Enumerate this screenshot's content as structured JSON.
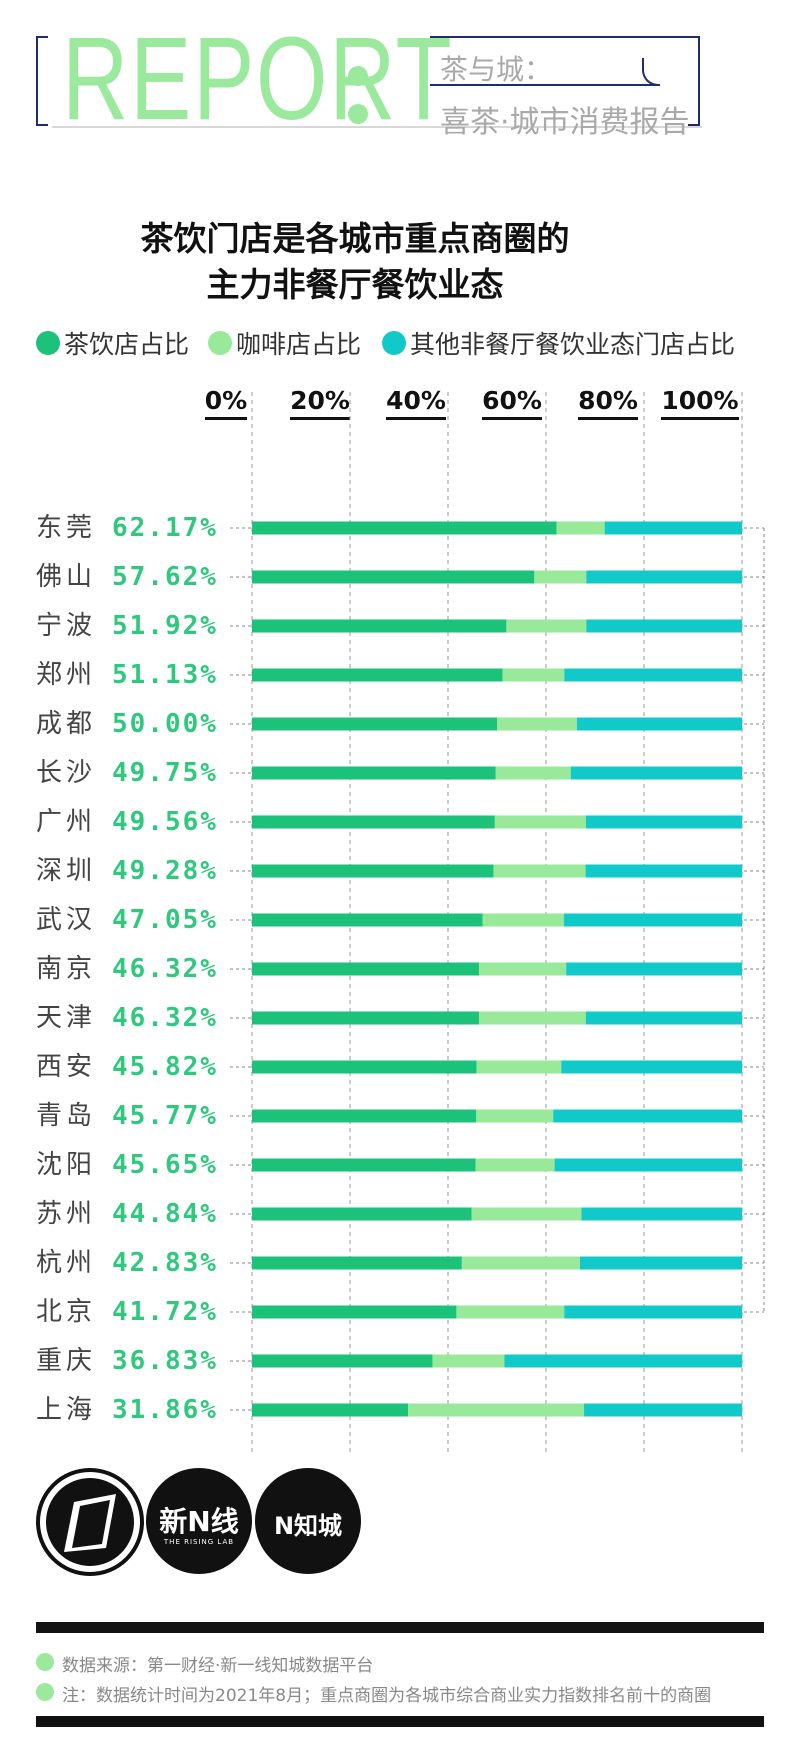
{
  "header": {
    "report_word": "REPORT",
    "subtitle_line1": "茶与城：",
    "subtitle_line2": "喜茶·城市消费报告"
  },
  "chart_data": {
    "type": "bar",
    "stacked": true,
    "orientation": "horizontal",
    "title_line1": "茶饮门店是各城市重点商圈的",
    "title_line2": "主力非餐厅餐饮业态",
    "xlim": [
      0,
      100
    ],
    "ticks": [
      "0%",
      "20%",
      "40%",
      "60%",
      "80%",
      "100%"
    ],
    "legend_position": "top",
    "categories": [
      "东莞",
      "佛山",
      "宁波",
      "郑州",
      "成都",
      "长沙",
      "广州",
      "深圳",
      "武汉",
      "南京",
      "天津",
      "西安",
      "青岛",
      "沈阳",
      "苏州",
      "杭州",
      "北京",
      "重庆",
      "上海"
    ],
    "value_labels": [
      "62.17%",
      "57.62%",
      "51.92%",
      "51.13%",
      "50.00%",
      "49.75%",
      "49.56%",
      "49.28%",
      "47.05%",
      "46.32%",
      "46.32%",
      "45.82%",
      "45.77%",
      "45.65%",
      "44.84%",
      "42.83%",
      "41.72%",
      "36.83%",
      "31.86%"
    ],
    "series": [
      {
        "name": "茶饮店占比",
        "color": "#1DC27A",
        "values": [
          62.17,
          57.62,
          51.92,
          51.13,
          50.0,
          49.75,
          49.56,
          49.28,
          47.05,
          46.32,
          46.32,
          45.82,
          45.77,
          45.65,
          44.84,
          42.83,
          41.72,
          36.83,
          31.86
        ]
      },
      {
        "name": "咖啡店占比",
        "color": "#98E99A",
        "values": [
          9.8,
          10.6,
          16.3,
          12.6,
          16.3,
          15.3,
          18.6,
          18.8,
          16.6,
          17.8,
          21.8,
          17.3,
          15.7,
          16.1,
          22.4,
          24.1,
          22.0,
          14.7,
          35.9
        ]
      },
      {
        "name": "其他非餐厅餐饮业态门店占比",
        "color": "#11C9C9",
        "values": [
          28.03,
          31.78,
          31.78,
          36.27,
          33.7,
          34.95,
          31.84,
          31.92,
          36.35,
          35.88,
          31.88,
          36.88,
          38.53,
          38.25,
          32.76,
          33.07,
          36.28,
          48.47,
          32.24
        ]
      }
    ]
  },
  "logos": {
    "logo2_main": "新",
    "logo2_icon": "N",
    "logo2_tail": "线",
    "logo2_sub": "THE RISING LAB",
    "logo3_icon": "N",
    "logo3_text": "知城"
  },
  "notes": {
    "source": "数据来源：第一财经·新一线知城数据平台",
    "note": "注：数据统计时间为2021年8月；重点商圈为各城市综合商业实力指数排名前十的商圈"
  }
}
